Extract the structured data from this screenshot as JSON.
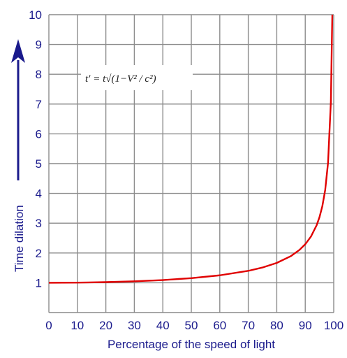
{
  "chart_data": {
    "type": "line",
    "title": "",
    "xlabel": "Percentage of the speed of light",
    "ylabel": "Time dilation",
    "xlim": [
      0,
      100
    ],
    "ylim": [
      0,
      10
    ],
    "grid": true,
    "x_ticks": [
      "0",
      "10",
      "20",
      "30",
      "40",
      "50",
      "60",
      "70",
      "80",
      "90",
      "100"
    ],
    "y_ticks": [
      "1",
      "2",
      "3",
      "4",
      "5",
      "6",
      "7",
      "8",
      "9",
      "10"
    ],
    "annotation": "t′ = t√(1−V² / c²)",
    "series": [
      {
        "x": [
          0,
          10,
          20,
          30,
          40,
          50,
          60,
          70,
          75,
          80,
          85,
          88,
          90,
          92,
          94,
          95,
          96,
          97,
          98,
          99,
          99.5
        ],
        "values": [
          1.0,
          1.005,
          1.021,
          1.048,
          1.091,
          1.155,
          1.25,
          1.4,
          1.512,
          1.667,
          1.898,
          2.105,
          2.294,
          2.552,
          2.931,
          3.203,
          3.571,
          4.113,
          5.025,
          7.089,
          10.0
        ]
      }
    ],
    "colors": {
      "line": "#e00000",
      "grid": "#8c8c8c",
      "text": "#1a1a8c",
      "arrow": "#1a1a8c"
    }
  }
}
